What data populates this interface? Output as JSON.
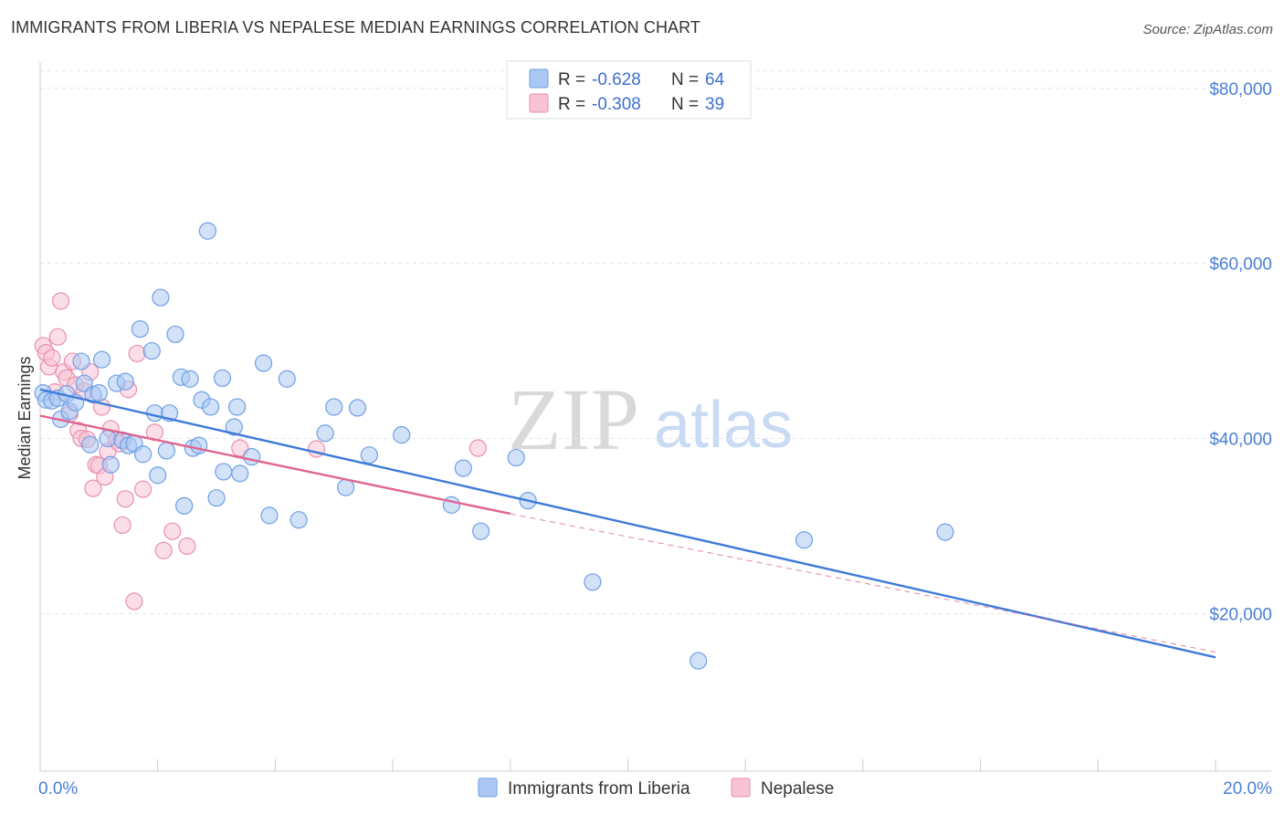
{
  "header": {
    "title": "IMMIGRANTS FROM LIBERIA VS NEPALESE MEDIAN EARNINGS CORRELATION CHART",
    "source": "Source: ZipAtlas.com"
  },
  "watermark": {
    "zip": "ZIP",
    "atlas": "atlas"
  },
  "legend": {
    "items": [
      {
        "r_label": "R =",
        "r_value": "-0.628",
        "n_label": "N =",
        "n_value": "64",
        "color": "#aac8f3",
        "stroke": "#6f9fe6"
      },
      {
        "r_label": "R =",
        "r_value": "-0.308",
        "n_label": "N =",
        "n_value": "39",
        "color": "#f8c3d4",
        "stroke": "#ea8fae"
      }
    ]
  },
  "bottom_legend": [
    {
      "label": "Immigrants from Liberia",
      "color": "#aac8f3",
      "stroke": "#6f9fe6"
    },
    {
      "label": "Nepalese",
      "color": "#f8c3d4",
      "stroke": "#ea8fae"
    }
  ],
  "chart_data": {
    "type": "scatter",
    "title": "IMMIGRANTS FROM LIBERIA VS NEPALESE MEDIAN EARNINGS CORRELATION CHART",
    "xlabel": "",
    "ylabel": "Median Earnings",
    "xlim": [
      0,
      20
    ],
    "ylim": [
      2000,
      83000
    ],
    "x_tick_labels": [
      "0.0%",
      "20.0%"
    ],
    "y_ticks": [
      20000,
      40000,
      60000,
      80000
    ],
    "y_tick_labels": [
      "$20,000",
      "$40,000",
      "$60,000",
      "$80,000"
    ],
    "grid": true,
    "legend_position": "top-center",
    "colors": {
      "liberia": "#3d7bd8",
      "nepalese": "#e0648f"
    },
    "series": [
      {
        "name": "Immigrants from Liberia",
        "color": "#3d7bd8",
        "points": [
          [
            0.05,
            45200
          ],
          [
            0.1,
            44400
          ],
          [
            0.2,
            44300
          ],
          [
            0.3,
            44600
          ],
          [
            0.35,
            42200
          ],
          [
            0.45,
            45100
          ],
          [
            0.5,
            43100
          ],
          [
            0.6,
            44100
          ],
          [
            0.7,
            48800
          ],
          [
            0.75,
            46300
          ],
          [
            0.85,
            39300
          ],
          [
            0.9,
            45000
          ],
          [
            1.0,
            45200
          ],
          [
            1.05,
            49000
          ],
          [
            1.15,
            40000
          ],
          [
            1.2,
            37000
          ],
          [
            1.3,
            46300
          ],
          [
            1.4,
            39800
          ],
          [
            1.45,
            46500
          ],
          [
            1.5,
            39200
          ],
          [
            1.6,
            39400
          ],
          [
            1.7,
            52500
          ],
          [
            1.75,
            38200
          ],
          [
            1.9,
            50000
          ],
          [
            1.95,
            42900
          ],
          [
            2.0,
            35800
          ],
          [
            2.05,
            56100
          ],
          [
            2.15,
            38600
          ],
          [
            2.2,
            42900
          ],
          [
            2.3,
            51900
          ],
          [
            2.4,
            47000
          ],
          [
            2.45,
            32300
          ],
          [
            2.55,
            46800
          ],
          [
            2.6,
            38900
          ],
          [
            2.7,
            39200
          ],
          [
            2.75,
            44400
          ],
          [
            2.85,
            63700
          ],
          [
            2.9,
            43600
          ],
          [
            3.0,
            33200
          ],
          [
            3.1,
            46900
          ],
          [
            3.12,
            36200
          ],
          [
            3.3,
            41300
          ],
          [
            3.35,
            43600
          ],
          [
            3.4,
            36000
          ],
          [
            3.6,
            37900
          ],
          [
            3.8,
            48600
          ],
          [
            3.9,
            31200
          ],
          [
            4.2,
            46800
          ],
          [
            4.4,
            30700
          ],
          [
            4.85,
            40600
          ],
          [
            5.0,
            43600
          ],
          [
            5.2,
            34400
          ],
          [
            5.4,
            43500
          ],
          [
            5.6,
            38100
          ],
          [
            6.15,
            40400
          ],
          [
            7.0,
            32400
          ],
          [
            7.2,
            36600
          ],
          [
            7.5,
            29400
          ],
          [
            8.1,
            37800
          ],
          [
            8.3,
            32900
          ],
          [
            9.4,
            23600
          ],
          [
            11.2,
            14600
          ],
          [
            13.0,
            28400
          ],
          [
            15.4,
            29300
          ]
        ]
      },
      {
        "name": "Nepalese",
        "color": "#e0648f",
        "points": [
          [
            0.05,
            50600
          ],
          [
            0.1,
            49800
          ],
          [
            0.15,
            48200
          ],
          [
            0.2,
            49200
          ],
          [
            0.25,
            45300
          ],
          [
            0.3,
            51600
          ],
          [
            0.35,
            55700
          ],
          [
            0.4,
            47600
          ],
          [
            0.45,
            46900
          ],
          [
            0.5,
            42800
          ],
          [
            0.55,
            48800
          ],
          [
            0.6,
            46100
          ],
          [
            0.65,
            40900
          ],
          [
            0.7,
            40000
          ],
          [
            0.75,
            45400
          ],
          [
            0.8,
            39900
          ],
          [
            0.85,
            47600
          ],
          [
            0.9,
            34300
          ],
          [
            0.95,
            37000
          ],
          [
            1.0,
            36900
          ],
          [
            1.05,
            43600
          ],
          [
            1.1,
            35600
          ],
          [
            1.15,
            38500
          ],
          [
            1.2,
            41100
          ],
          [
            1.3,
            39800
          ],
          [
            1.35,
            39400
          ],
          [
            1.4,
            30100
          ],
          [
            1.45,
            33100
          ],
          [
            1.5,
            45600
          ],
          [
            1.6,
            21400
          ],
          [
            1.65,
            49700
          ],
          [
            1.75,
            34200
          ],
          [
            1.95,
            40700
          ],
          [
            2.1,
            27200
          ],
          [
            2.25,
            29400
          ],
          [
            2.5,
            27700
          ],
          [
            3.4,
            38900
          ],
          [
            4.7,
            38800
          ],
          [
            7.45,
            38900
          ]
        ]
      }
    ],
    "trend_lines": [
      {
        "series": "Immigrants from Liberia",
        "x": [
          0,
          20
        ],
        "y": [
          45600,
          15000
        ],
        "style": "solid"
      },
      {
        "series": "Nepalese",
        "x": [
          0,
          8
        ],
        "y": [
          42600,
          31400
        ],
        "style": "solid"
      },
      {
        "series": "Nepalese",
        "x": [
          8,
          20
        ],
        "y": [
          31400,
          15600
        ],
        "style": "dashed"
      }
    ]
  }
}
